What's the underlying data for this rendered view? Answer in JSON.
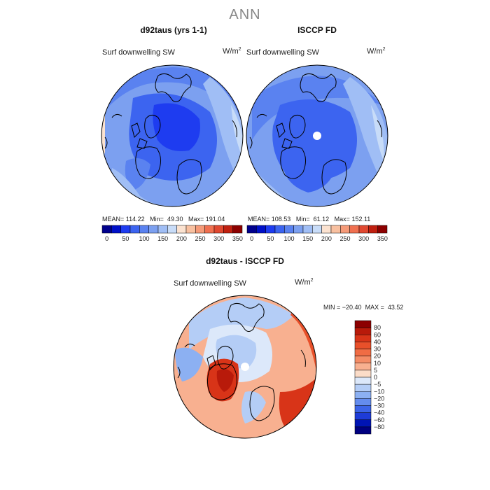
{
  "figure": {
    "title": "ANN",
    "panels": [
      {
        "title": "d92taus (yrs 1-1)",
        "variable": "Surf downwelling SW",
        "units": "W/m",
        "units_exp": "2",
        "stats": {
          "mean_label": "MEAN=",
          "mean": "114.22",
          "min_label": "Min=",
          "min": "49.30",
          "max_label": "Max=",
          "max": "191.04"
        }
      },
      {
        "title": "ISCCP FD",
        "variable": "Surf downwelling SW",
        "units": "W/m",
        "units_exp": "2",
        "stats": {
          "mean_label": "MEAN=",
          "mean": "108.53",
          "min_label": "Min=",
          "min": "61.12",
          "max_label": "Max=",
          "max": "152.11"
        }
      },
      {
        "title": "d92taus - ISCCP FD",
        "variable": "Surf downwelling SW",
        "units": "W/m",
        "units_exp": "2",
        "stats": {
          "min_label": "MIN =",
          "min": "−20.40",
          "max_label": "MAX =",
          "max": "43.52"
        }
      }
    ]
  },
  "chart_data": [
    {
      "type": "heatmap",
      "projection": "north-polar-stereographic",
      "title": "d92taus (yrs 1-1)",
      "field": "Surf downwelling SW",
      "units": "W/m2",
      "mean": 114.22,
      "min": 49.3,
      "max": 191.04,
      "colorbar": {
        "levels": [
          0,
          25,
          50,
          75,
          100,
          125,
          150,
          175,
          200,
          225,
          250,
          275,
          300,
          325,
          350
        ],
        "tick_labels": [
          "0",
          "50",
          "100",
          "150",
          "200",
          "250",
          "300",
          "350"
        ],
        "colors": [
          "#00008c",
          "#0010c8",
          "#1e3cf0",
          "#3c64f0",
          "#5a82f0",
          "#7ca0f0",
          "#a0bef5",
          "#c8dcf8",
          "#fbe2d0",
          "#f8c0a0",
          "#f59a78",
          "#f07050",
          "#e04830",
          "#c02010",
          "#8c0000"
        ]
      }
    },
    {
      "type": "heatmap",
      "projection": "north-polar-stereographic",
      "title": "ISCCP FD",
      "field": "Surf downwelling SW",
      "units": "W/m2",
      "mean": 108.53,
      "min": 61.12,
      "max": 152.11,
      "colorbar": {
        "levels": [
          0,
          25,
          50,
          75,
          100,
          125,
          150,
          175,
          200,
          225,
          250,
          275,
          300,
          325,
          350
        ],
        "tick_labels": [
          "0",
          "50",
          "100",
          "150",
          "200",
          "250",
          "300",
          "350"
        ],
        "colors": [
          "#00008c",
          "#0010c8",
          "#1e3cf0",
          "#3c64f0",
          "#5a82f0",
          "#7ca0f0",
          "#a0bef5",
          "#c8dcf8",
          "#fbe2d0",
          "#f8c0a0",
          "#f59a78",
          "#f07050",
          "#e04830",
          "#c02010",
          "#8c0000"
        ]
      }
    },
    {
      "type": "heatmap",
      "projection": "north-polar-stereographic",
      "title": "d92taus - ISCCP FD",
      "field": "Surf downwelling SW",
      "units": "W/m2",
      "min": -20.4,
      "max": 43.52,
      "colorbar": {
        "orientation": "vertical",
        "levels": [
          80,
          60,
          40,
          30,
          20,
          10,
          5,
          0,
          -5,
          -10,
          -20,
          -30,
          -40,
          -60,
          -80
        ],
        "tick_labels": [
          "80",
          "60",
          "40",
          "30",
          "20",
          "10",
          "5",
          "0",
          "−5",
          "−10",
          "−20",
          "−30",
          "−40",
          "−60",
          "−80"
        ],
        "colors": [
          "#8c0000",
          "#b81a0a",
          "#d83418",
          "#e8502a",
          "#f06c44",
          "#f48c66",
          "#f8b090",
          "#fbdcc8",
          "#dce8fa",
          "#b4cdf6",
          "#8cb0f2",
          "#648cee",
          "#3c64e8",
          "#1e3cd8",
          "#0014b4",
          "#000080"
        ]
      }
    }
  ]
}
